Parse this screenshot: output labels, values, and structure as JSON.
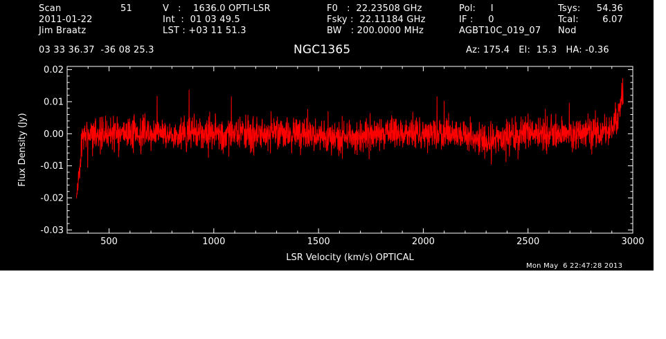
{
  "header": {
    "scan_label": "Scan",
    "scan_value": "51",
    "date": "2011-01-22",
    "observer": "Jim Braatz",
    "v_line": "V   :    1636.0 OPTI-LSR",
    "int_line": "Int  :  01 03 49.5",
    "lst_line": "LST : +03 11 51.3",
    "f0_line": "F0   :  22.23508 GHz",
    "fsky_line": "Fsky :  22.11184 GHz",
    "bw_line": "BW   : 200.0000 MHz",
    "pol_line": "Pol:     I",
    "if_line": "IF :     0",
    "project": "AGBT10C_019_07",
    "tsys_label": "Tsys:",
    "tsys_value": "54.36",
    "tcal_label": "Tcal:",
    "tcal_value": "6.07",
    "nod": "Nod",
    "coords": "03 33 36.37  -36 08 25.3",
    "source": "NGC1365",
    "azel": "Az: 175.4   El:  15.3   HA: -0.36"
  },
  "timestamp": "Mon May  6 22:47:28 2013",
  "colors": {
    "background": "#000000",
    "axes": "#ffffff",
    "trace": "#ff0000"
  },
  "chart_data": {
    "type": "line",
    "title": "NGC1365",
    "xlabel": "LSR Velocity (km/s) OPTICAL",
    "ylabel": "Flux Density (Jy)",
    "xlim": [
      300,
      3000
    ],
    "ylim": [
      -0.031,
      0.021
    ],
    "xticks": [
      500,
      1000,
      1500,
      2000,
      2500,
      3000
    ],
    "yticks": [
      -0.03,
      -0.02,
      -0.01,
      0.0,
      0.01,
      0.02
    ],
    "ytick_labels": [
      "-0.03",
      "-0.02",
      "-0.01",
      "0.00",
      "0.01",
      "0.02"
    ],
    "grid": false,
    "series": [
      {
        "color": "#ff0000",
        "noise_rms": 0.004,
        "x_range": [
          345,
          2955
        ],
        "x": [
          345,
          350,
          356,
          362,
          370,
          380,
          400,
          500,
          700,
          900,
          1100,
          1300,
          1500,
          1600,
          1800,
          2000,
          2200,
          2300,
          2500,
          2700,
          2850,
          2890,
          2910,
          2925,
          2935,
          2945,
          2955
        ],
        "y": [
          -0.017,
          -0.015,
          -0.012,
          -0.008,
          -0.003,
          0.0,
          0.0,
          0.0,
          0.0,
          0.0,
          0.0,
          0.0,
          0.0,
          -0.001,
          0.0,
          0.0,
          0.0,
          -0.002,
          0.0,
          0.0,
          0.0,
          0.0,
          0.002,
          0.005,
          0.008,
          0.011,
          0.012
        ]
      }
    ]
  }
}
